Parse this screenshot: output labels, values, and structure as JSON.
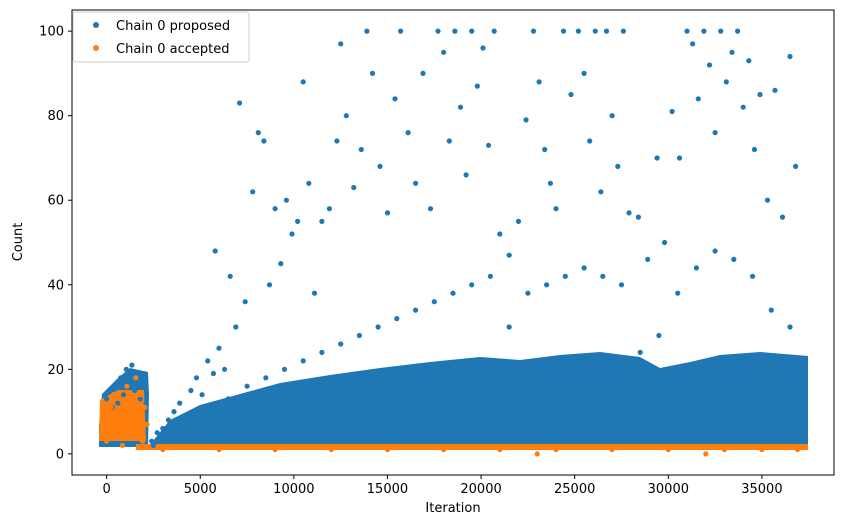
{
  "chart_data": {
    "type": "scatter",
    "title": "",
    "xlabel": "Iteration",
    "ylabel": "Count",
    "xlim": [
      -1850,
      38850
    ],
    "ylim": [
      -5,
      105
    ],
    "x_ticks": [
      0,
      5000,
      10000,
      15000,
      20000,
      25000,
      30000,
      35000
    ],
    "y_ticks": [
      0,
      20,
      40,
      60,
      80,
      100
    ],
    "grid": false,
    "legend_position": "top-left",
    "series": [
      {
        "name": "Chain 0 proposed",
        "color": "#1f77b4",
        "points": [
          [
            0,
            13
          ],
          [
            150,
            15
          ],
          [
            300,
            11
          ],
          [
            450,
            16
          ],
          [
            600,
            12
          ],
          [
            750,
            18
          ],
          [
            900,
            14
          ],
          [
            1050,
            20
          ],
          [
            1200,
            17
          ],
          [
            1350,
            21
          ],
          [
            1500,
            15
          ],
          [
            1650,
            19
          ],
          [
            1800,
            13
          ],
          [
            1950,
            16
          ],
          [
            2100,
            12
          ],
          [
            2400,
            3
          ],
          [
            2700,
            5
          ],
          [
            3000,
            6
          ],
          [
            3300,
            8
          ],
          [
            3600,
            10
          ],
          [
            3900,
            12
          ],
          [
            4200,
            9
          ],
          [
            4500,
            15
          ],
          [
            4800,
            18
          ],
          [
            5100,
            14
          ],
          [
            5400,
            22
          ],
          [
            5700,
            19
          ],
          [
            5800,
            48
          ],
          [
            6000,
            25
          ],
          [
            6300,
            20
          ],
          [
            6600,
            42
          ],
          [
            6900,
            30
          ],
          [
            7100,
            83
          ],
          [
            7400,
            36
          ],
          [
            7800,
            62
          ],
          [
            8100,
            76
          ],
          [
            8400,
            74
          ],
          [
            8700,
            40
          ],
          [
            9000,
            58
          ],
          [
            9300,
            45
          ],
          [
            9600,
            60
          ],
          [
            9900,
            52
          ],
          [
            10200,
            55
          ],
          [
            10500,
            88
          ],
          [
            10800,
            64
          ],
          [
            11100,
            38
          ],
          [
            11500,
            55
          ],
          [
            11900,
            58
          ],
          [
            12300,
            74
          ],
          [
            12500,
            97
          ],
          [
            12800,
            80
          ],
          [
            13200,
            63
          ],
          [
            13600,
            72
          ],
          [
            13900,
            100
          ],
          [
            14200,
            90
          ],
          [
            14600,
            68
          ],
          [
            15000,
            57
          ],
          [
            15400,
            84
          ],
          [
            15700,
            100
          ],
          [
            16100,
            76
          ],
          [
            16500,
            64
          ],
          [
            16900,
            90
          ],
          [
            17300,
            58
          ],
          [
            17700,
            100
          ],
          [
            18000,
            95
          ],
          [
            18300,
            74
          ],
          [
            18600,
            100
          ],
          [
            18900,
            82
          ],
          [
            19200,
            66
          ],
          [
            19500,
            100
          ],
          [
            19800,
            87
          ],
          [
            20100,
            96
          ],
          [
            20400,
            73
          ],
          [
            20700,
            100
          ],
          [
            21000,
            52
          ],
          [
            21500,
            47
          ],
          [
            22000,
            55
          ],
          [
            22400,
            79
          ],
          [
            22800,
            100
          ],
          [
            23100,
            88
          ],
          [
            23400,
            72
          ],
          [
            23700,
            64
          ],
          [
            24000,
            58
          ],
          [
            24400,
            100
          ],
          [
            24800,
            85
          ],
          [
            25200,
            100
          ],
          [
            25500,
            90
          ],
          [
            25800,
            74
          ],
          [
            26100,
            100
          ],
          [
            26400,
            62
          ],
          [
            26700,
            100
          ],
          [
            27000,
            80
          ],
          [
            27300,
            68
          ],
          [
            27600,
            100
          ],
          [
            27900,
            57
          ],
          [
            28400,
            56
          ],
          [
            28900,
            46
          ],
          [
            29400,
            70
          ],
          [
            29800,
            50
          ],
          [
            30200,
            81
          ],
          [
            30600,
            70
          ],
          [
            31000,
            100
          ],
          [
            31300,
            97
          ],
          [
            31600,
            84
          ],
          [
            31900,
            100
          ],
          [
            32200,
            92
          ],
          [
            32500,
            76
          ],
          [
            32800,
            100
          ],
          [
            33100,
            88
          ],
          [
            33400,
            95
          ],
          [
            33700,
            100
          ],
          [
            34000,
            82
          ],
          [
            34300,
            93
          ],
          [
            34600,
            72
          ],
          [
            34900,
            85
          ],
          [
            35300,
            60
          ],
          [
            35700,
            86
          ],
          [
            36100,
            56
          ],
          [
            36500,
            94
          ],
          [
            36800,
            68
          ],
          [
            2500,
            2
          ],
          [
            3500,
            4
          ],
          [
            4500,
            7
          ],
          [
            5500,
            11
          ],
          [
            6500,
            13
          ],
          [
            7500,
            16
          ],
          [
            8500,
            18
          ],
          [
            9500,
            20
          ],
          [
            10500,
            22
          ],
          [
            11500,
            24
          ],
          [
            12500,
            26
          ],
          [
            13500,
            28
          ],
          [
            14500,
            30
          ],
          [
            15500,
            32
          ],
          [
            16500,
            34
          ],
          [
            17500,
            36
          ],
          [
            18500,
            38
          ],
          [
            19500,
            40
          ],
          [
            20500,
            42
          ],
          [
            21500,
            30
          ],
          [
            22500,
            38
          ],
          [
            23500,
            40
          ],
          [
            24500,
            42
          ],
          [
            25500,
            44
          ],
          [
            26500,
            42
          ],
          [
            27500,
            40
          ],
          [
            28500,
            24
          ],
          [
            29500,
            28
          ],
          [
            30500,
            38
          ],
          [
            31500,
            44
          ],
          [
            32500,
            48
          ],
          [
            33500,
            46
          ],
          [
            34500,
            42
          ],
          [
            35500,
            34
          ],
          [
            36500,
            30
          ]
        ]
      },
      {
        "name": "Chain 0 accepted",
        "color": "#ff7f0e",
        "points": [
          [
            0,
            3
          ],
          [
            120,
            7
          ],
          [
            240,
            11
          ],
          [
            360,
            14
          ],
          [
            480,
            5
          ],
          [
            600,
            9
          ],
          [
            720,
            13
          ],
          [
            840,
            2
          ],
          [
            960,
            8
          ],
          [
            1080,
            16
          ],
          [
            1200,
            12
          ],
          [
            1320,
            4
          ],
          [
            1440,
            10
          ],
          [
            1560,
            18
          ],
          [
            1680,
            6
          ],
          [
            1800,
            14
          ],
          [
            1920,
            3
          ],
          [
            2040,
            11
          ],
          [
            2160,
            7
          ],
          [
            3000,
            1
          ],
          [
            6000,
            1
          ],
          [
            9000,
            1
          ],
          [
            12000,
            1
          ],
          [
            15000,
            1
          ],
          [
            18000,
            1
          ],
          [
            21000,
            1
          ],
          [
            23000,
            0
          ],
          [
            24000,
            1
          ],
          [
            27000,
            1
          ],
          [
            30000,
            1
          ],
          [
            32000,
            0
          ],
          [
            33000,
            1
          ],
          [
            35000,
            1
          ],
          [
            36900,
            1
          ]
        ]
      }
    ]
  }
}
